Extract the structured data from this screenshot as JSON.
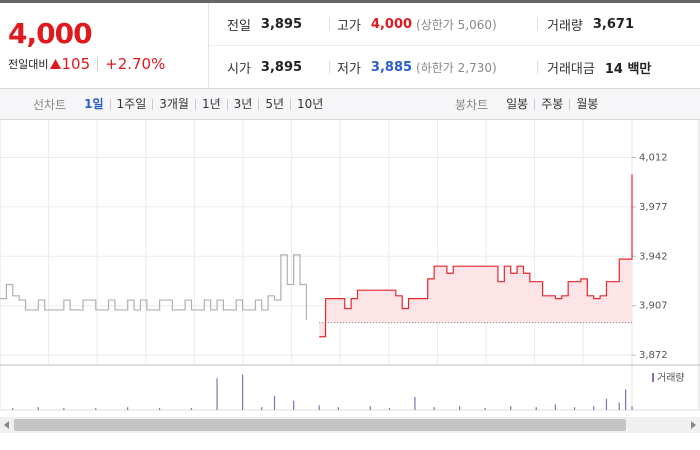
{
  "header": {
    "price": "4,000",
    "change_label": "전일대비",
    "change": "105",
    "change_pct": "+2.70%"
  },
  "stats": [
    [
      {
        "label": "전일",
        "value": "3,895"
      },
      {
        "label": "고가",
        "value": "4,000",
        "note": "(상한가 5,060)"
      },
      {
        "label": "거래량",
        "value": "3,671"
      }
    ],
    [
      {
        "label": "시가",
        "value": "3,895"
      },
      {
        "label": "저가",
        "value": "3,885",
        "note": "(하한가 2,730)"
      },
      {
        "label": "거래대금",
        "value": "14 백만"
      }
    ]
  ],
  "tabs": {
    "line_label": "선차트",
    "line_periods": [
      "1일",
      "1주일",
      "3개월",
      "1년",
      "3년",
      "5년",
      "10년"
    ],
    "candle_label": "봉차트",
    "candle_periods": [
      "일봉",
      "주봉",
      "월봉"
    ]
  },
  "chart_data": [
    {
      "type": "line",
      "step": true,
      "baseline": 3895,
      "fill_color": "#fde5e7",
      "ylim": [
        3865,
        4035
      ],
      "yticks": [
        {
          "value": 3872,
          "label": "3,872"
        },
        {
          "value": 3907,
          "label": "3,907"
        },
        {
          "value": 3942,
          "label": "3,942"
        },
        {
          "value": 3977,
          "label": "3,977"
        },
        {
          "value": 4012,
          "label": "4,012"
        }
      ],
      "grid": true,
      "series": [
        {
          "color": "#b0b0b0",
          "values": [
            3912,
            3922,
            3914,
            3911,
            3904,
            3904,
            3911,
            3904,
            3904,
            3904,
            3911,
            3904,
            3904,
            3911,
            3911,
            3904,
            3904,
            3911,
            3904,
            3904,
            3911,
            3904,
            3911,
            3904,
            3904,
            3911,
            3911,
            3904,
            3904,
            3911,
            3904,
            3904,
            3911,
            3904,
            3911,
            3904,
            3904,
            3911,
            3904,
            3904,
            3911,
            3904,
            3914,
            3911,
            3943,
            3922,
            3943,
            3922,
            3897,
            null,
            null,
            null,
            null,
            null,
            null,
            null,
            null,
            null,
            null,
            null,
            null,
            null,
            null,
            null,
            null,
            null,
            null,
            null,
            null,
            null,
            null,
            null,
            null,
            null,
            null,
            null,
            null,
            null,
            null,
            null,
            null,
            null,
            null,
            null,
            null,
            null,
            null,
            null,
            null,
            null,
            null,
            null,
            null,
            null,
            null,
            null,
            null,
            null,
            null,
            null
          ]
        },
        {
          "color": "#e8262e",
          "fill": true,
          "values": [
            null,
            null,
            null,
            null,
            null,
            null,
            null,
            null,
            null,
            null,
            null,
            null,
            null,
            null,
            null,
            null,
            null,
            null,
            null,
            null,
            null,
            null,
            null,
            null,
            null,
            null,
            null,
            null,
            null,
            null,
            null,
            null,
            null,
            null,
            null,
            null,
            null,
            null,
            null,
            null,
            null,
            null,
            null,
            null,
            null,
            null,
            null,
            null,
            null,
            null,
            3885,
            3912,
            3912,
            3912,
            3905,
            3912,
            3918,
            3918,
            3918,
            3918,
            3918,
            3918,
            3914,
            3905,
            3912,
            3912,
            3912,
            3926,
            3935,
            3935,
            3930,
            3935,
            3935,
            3935,
            3935,
            3935,
            3935,
            3935,
            3924,
            3935,
            3930,
            3935,
            3930,
            3924,
            3924,
            3914,
            3914,
            3912,
            3914,
            3924,
            3924,
            3926,
            3914,
            3912,
            3914,
            3924,
            3924,
            3940,
            3940,
            4000
          ]
        }
      ]
    },
    {
      "type": "bar",
      "ylim": [
        0,
        45
      ],
      "legend": "top-right",
      "series": [
        {
          "name": "거래량",
          "color": "#7d72b4",
          "values": [
            0,
            0,
            2,
            0,
            0,
            0,
            3,
            0,
            0,
            0,
            2,
            0,
            0,
            0,
            0,
            2,
            0,
            0,
            0,
            0,
            3,
            0,
            0,
            0,
            0,
            2,
            0,
            0,
            0,
            0,
            2,
            0,
            0,
            0,
            34,
            0,
            0,
            0,
            38,
            0,
            0,
            3,
            0,
            15,
            0,
            0,
            10,
            0,
            0,
            0,
            5,
            0,
            0,
            3,
            0,
            0,
            0,
            0,
            4,
            0,
            0,
            2,
            0,
            0,
            0,
            14,
            0,
            0,
            3,
            0,
            0,
            0,
            4,
            0,
            0,
            0,
            2,
            0,
            0,
            0,
            4,
            0,
            0,
            0,
            3,
            0,
            0,
            6,
            0,
            0,
            3,
            0,
            0,
            4,
            0,
            12,
            0,
            8,
            22,
            4
          ]
        }
      ]
    }
  ]
}
